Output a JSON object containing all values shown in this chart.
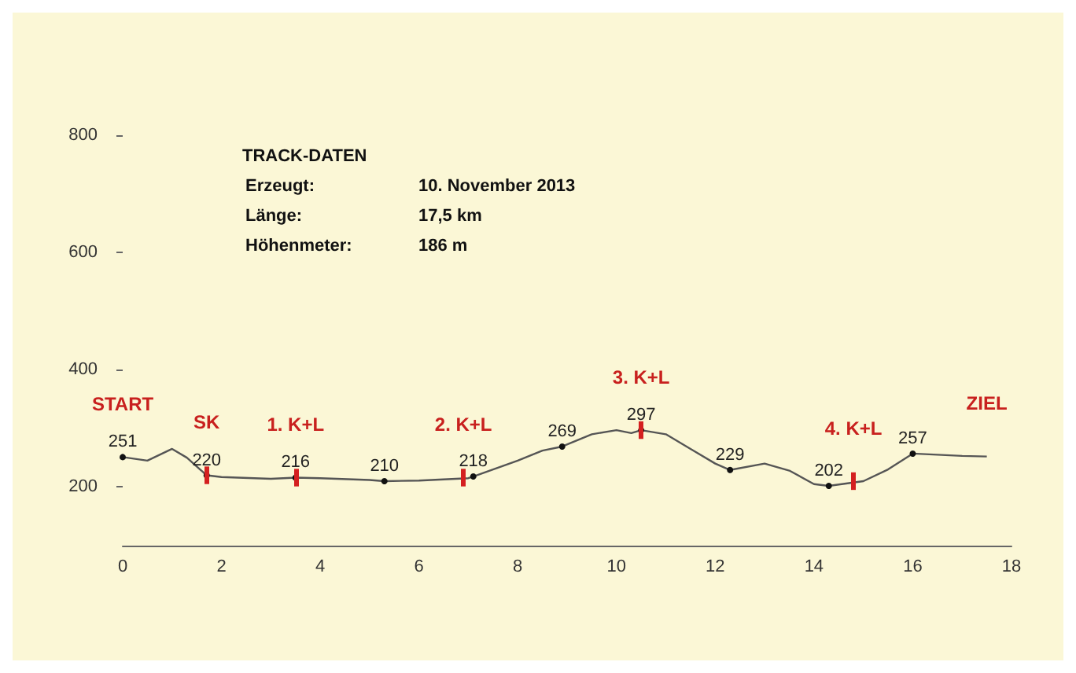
{
  "chart_data": {
    "type": "line",
    "color": "#555555",
    "x": [
      0,
      0.5,
      1,
      1.3,
      1.7,
      2,
      3,
      3.5,
      4,
      5,
      5.3,
      6,
      7,
      7.1,
      8,
      8.5,
      8.9,
      9.5,
      10,
      10.3,
      10.5,
      11,
      11.5,
      12,
      12.3,
      13,
      13.5,
      14,
      14.3,
      15,
      15.5,
      16,
      16.5,
      17,
      17.5
    ],
    "values": [
      251,
      245,
      265,
      250,
      220,
      217,
      214,
      216,
      215,
      212,
      210,
      211,
      215,
      218,
      245,
      262,
      269,
      290,
      297,
      292,
      297,
      290,
      265,
      240,
      229,
      240,
      228,
      205,
      202,
      210,
      230,
      257,
      255,
      253,
      252
    ],
    "value_labels": [
      "251",
      null,
      null,
      null,
      "220",
      null,
      null,
      "216",
      null,
      null,
      "210",
      null,
      null,
      "218",
      null,
      null,
      "269",
      null,
      null,
      null,
      "297",
      null,
      null,
      null,
      "229",
      null,
      null,
      null,
      "202",
      null,
      null,
      "257",
      null,
      null,
      null
    ],
    "xlim": [
      0,
      18
    ],
    "xticks": [
      0,
      2,
      4,
      6,
      8,
      10,
      12,
      14,
      16,
      18
    ],
    "ylim": [
      100,
      800
    ],
    "yticks": [
      200,
      400,
      600,
      800
    ],
    "grid": false,
    "annotations": [
      "TRACK-DATEN",
      "Erzeugt:",
      "10. November 2013",
      "Länge:",
      "17,5 km",
      "Höhenmeter:",
      "186 m",
      {
        "text": "START",
        "x": 0,
        "y": 251
      },
      {
        "text": "SK",
        "x": 1.7,
        "y": 220
      },
      {
        "text": "1. K+L",
        "x": 3.5,
        "y": 216
      },
      {
        "text": "2. K+L",
        "x": 6.9,
        "y": 216
      },
      {
        "text": "3. K+L",
        "x": 10.5,
        "y": 297
      },
      {
        "text": "4. K+L",
        "x": 14.8,
        "y": 210
      },
      {
        "text": "ZIEL",
        "x": 17.5,
        "y": 252
      }
    ]
  }
}
